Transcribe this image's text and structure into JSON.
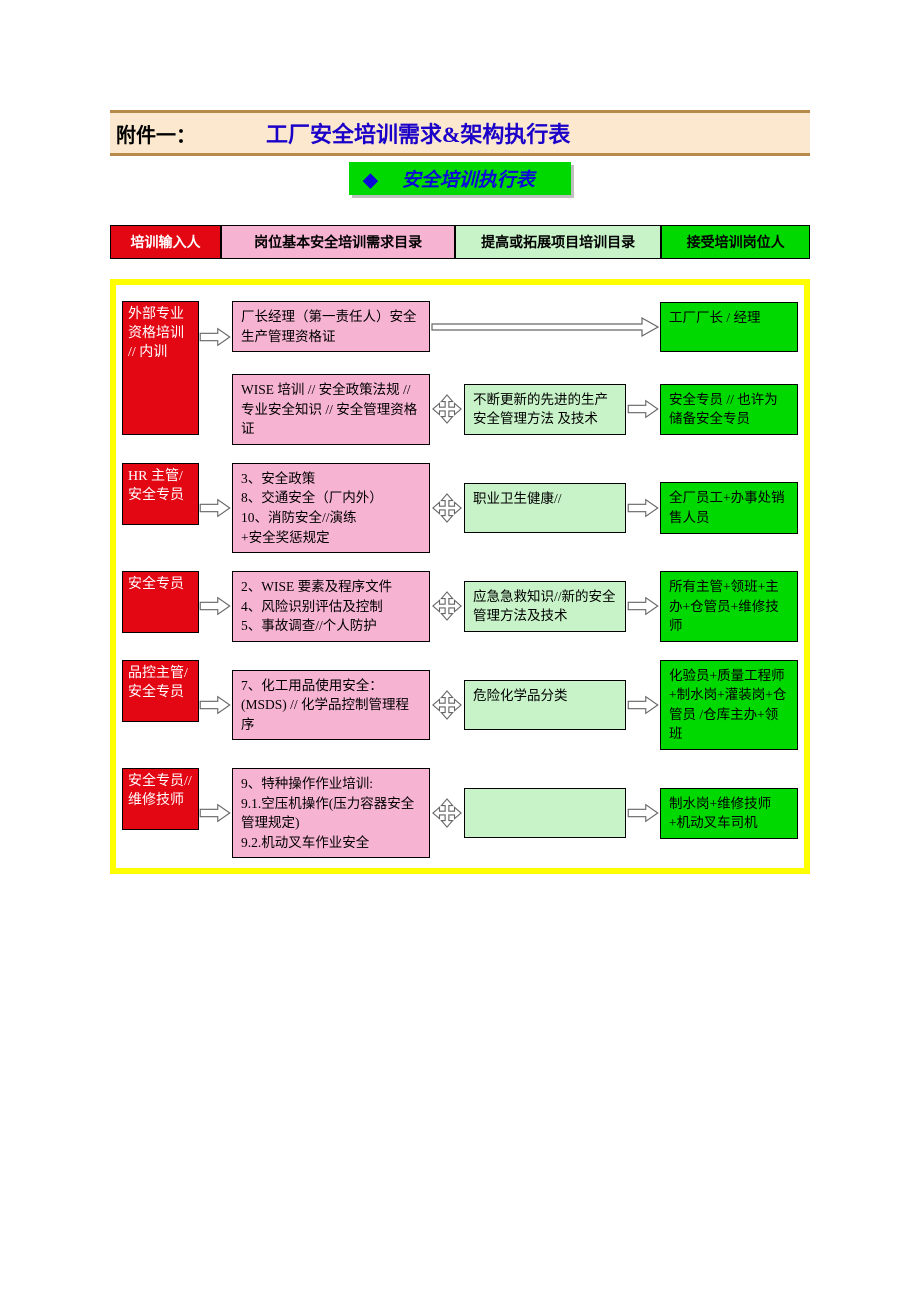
{
  "colors": {
    "titlebar_bg": "#fbe8cf",
    "titlebar_border": "#b88a4a",
    "title_text": "#1a00c8",
    "subtitle_bg": "#00d900",
    "subtitle_text": "#0b0bd8",
    "legend_red_bg": "#e30613",
    "legend_pink_bg": "#f7b3d2",
    "legend_ltgreen_bg": "#c8f2c8",
    "legend_green_bg": "#00d900",
    "frame_border": "#ffff00",
    "arrow_stroke": "#666666",
    "arrow_fill": "#ffffff"
  },
  "title": {
    "prefix": "附件一：",
    "main": "工厂安全培训需求&架构执行表"
  },
  "subtitle": "安全培训执行表",
  "legend": {
    "c1": "培训输入人",
    "c2": "岗位基本安全培训需求目录",
    "c3": "提高或拓展项目培训目录",
    "c4": "接受培训岗位人",
    "w1": 112,
    "w2": 236,
    "w3": 208,
    "w4": 150
  },
  "rows": [
    {
      "input": "外部专业资格培训 //   内训",
      "input_tall": true,
      "stacks": [
        {
          "basic": "厂长经理（第一责任人）安全生产管理资格证",
          "ext": null,
          "receiver": "工厂厂长 / 经理",
          "long_arrow": true
        },
        {
          "basic": "WISE 培训  //  安全政策法规  //  专业安全知识  // 安全管理资格证",
          "ext": "不断更新的先进的生产安全管理方法 及技术",
          "receiver": "安全专员 //  也许为储备安全专员"
        }
      ]
    },
    {
      "input": "HR 主管/安全专员",
      "stacks": [
        {
          "basic": "3、安全政策\n8、交通安全（厂内外）\n10、消防安全//演练\n+安全奖惩规定",
          "ext": "职业卫生健康//",
          "receiver": "全厂员工+办事处销售人员"
        }
      ]
    },
    {
      "input": "安全专员",
      "stacks": [
        {
          "basic": "2、WISE 要素及程序文件\n4、风险识别评估及控制\n5、事故调查//个人防护",
          "ext": "应急急救知识//新的安全管理方法及技术",
          "receiver": "所有主管+领班+主办+仓管员+维修技师"
        }
      ]
    },
    {
      "input": "品控主管/安全专员",
      "stacks": [
        {
          "basic": "7、化工用品使用安全：(MSDS)  //  化学品控制管理程序",
          "ext": "危险化学品分类",
          "receiver": "化验员+质量工程师+制水岗+灌装岗+仓管员 /仓库主办+领班"
        }
      ]
    },
    {
      "input": "安全专员//维修技师",
      "stacks": [
        {
          "basic": "9、特种操作作业培训:\n9.1.空压机操作(压力容器安全管理规定)\n9.2.机动叉车作业安全",
          "ext": "",
          "receiver": "制水岗+维修技师+机动叉车司机"
        }
      ]
    }
  ]
}
